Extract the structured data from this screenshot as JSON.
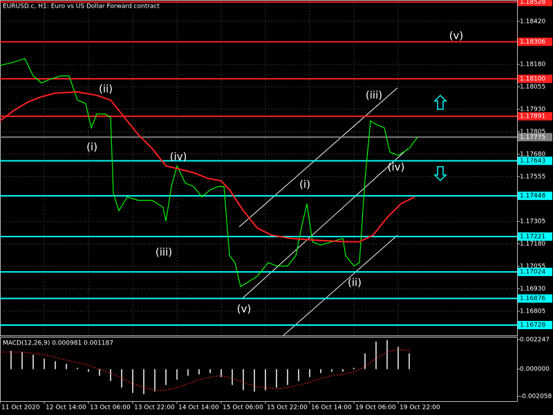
{
  "chart_data": {
    "type": "line",
    "title": "EURUSD.c, H1:  Euro vs US Dollar Forward contract",
    "grid": true,
    "xlim": [
      0,
      187
    ],
    "xticks": [
      {
        "value": 0,
        "label": "11 Oct 2020"
      },
      {
        "value": 16,
        "label": "12 Oct 14:00"
      },
      {
        "value": 32,
        "label": "13 Oct 06:00"
      },
      {
        "value": 48,
        "label": "13 Oct 22:00"
      },
      {
        "value": 64,
        "label": "14 Oct 14:00"
      },
      {
        "value": 80,
        "label": "15 Oct 06:00"
      },
      {
        "value": 96,
        "label": "15 Oct 22:00"
      },
      {
        "value": 112,
        "label": "16 Oct 14:00"
      },
      {
        "value": 128,
        "label": "19 Oct 06:00"
      },
      {
        "value": 144,
        "label": "19 Oct 22:00"
      }
    ],
    "ylim": [
      1.1667,
      1.18539
    ],
    "yticks": [
      {
        "value": 1.1842,
        "label": "1.18420"
      },
      {
        "value": 1.1818,
        "label": "1.18180"
      },
      1.18055,
      {
        "value": 1.1793,
        "label": "1.17930"
      },
      1.17805,
      {
        "value": 1.1768,
        "label": "1.17680"
      },
      1.17555,
      1.17305,
      {
        "value": 1.1718,
        "label": "1.17180"
      },
      1.17055,
      {
        "value": 1.1693,
        "label": "1.16930"
      },
      1.16805
    ],
    "series": [
      {
        "color": "#00ff00",
        "x": [
          0,
          5,
          9,
          12,
          15,
          18,
          22,
          25,
          28,
          31,
          33,
          35,
          38,
          40,
          41,
          43,
          46,
          50,
          55,
          59,
          60,
          62,
          64,
          67,
          70,
          73,
          76,
          79,
          81,
          83,
          85,
          87,
          89,
          93,
          97,
          100,
          104,
          107,
          109,
          111,
          113,
          116,
          120,
          124,
          125,
          128,
          130,
          132,
          134,
          136,
          139,
          141,
          144,
          148,
          151
        ],
        "values": [
          1.18174,
          1.18193,
          1.18212,
          1.18116,
          1.18077,
          1.18097,
          1.18116,
          1.18116,
          1.17981,
          1.17962,
          1.17827,
          1.17904,
          1.17904,
          1.17885,
          1.17461,
          1.17365,
          1.17442,
          1.17423,
          1.17423,
          1.17384,
          1.17307,
          1.175,
          1.17615,
          1.17519,
          1.175,
          1.17442,
          1.17481,
          1.175,
          1.175,
          1.17115,
          1.17076,
          1.16942,
          1.16961,
          1.16999,
          1.17076,
          1.17057,
          1.17057,
          1.17115,
          1.17269,
          1.17404,
          1.17192,
          1.17173,
          1.17192,
          1.17211,
          1.17115,
          1.17057,
          1.17076,
          1.17538,
          1.17866,
          1.17846,
          1.17827,
          1.17692,
          1.17673,
          1.17712,
          1.17775
        ]
      },
      {
        "color": "#ff2020",
        "x": [
          0,
          5,
          10,
          15,
          20,
          28,
          35,
          40,
          45,
          50,
          55,
          60,
          65,
          70,
          75,
          80,
          83,
          88,
          93,
          98,
          105,
          115,
          125,
          130,
          135,
          140,
          145,
          150
        ],
        "values": [
          1.17866,
          1.17923,
          1.1797,
          1.18,
          1.1802,
          1.18027,
          1.18008,
          1.17981,
          1.17885,
          1.17789,
          1.17712,
          1.17615,
          1.17596,
          1.17577,
          1.17546,
          1.17531,
          1.17481,
          1.17365,
          1.17269,
          1.1723,
          1.17211,
          1.172,
          1.17192,
          1.17192,
          1.1723,
          1.17327,
          1.17404,
          1.17442
        ]
      }
    ],
    "levels": [
      {
        "value": 1.18528,
        "color": "#ff2020"
      },
      {
        "value": 1.18306,
        "color": "#ff2020"
      },
      {
        "value": 1.181,
        "label": "1.18100",
        "color": "#ff2020"
      },
      {
        "value": 1.17891,
        "color": "#ff2020"
      },
      {
        "value": 1.17775,
        "color": "#808080"
      },
      {
        "value": 1.17643,
        "color": "#00ffff"
      },
      {
        "value": 1.17448,
        "color": "#00ffff"
      },
      {
        "value": 1.17221,
        "color": "#00ffff"
      },
      {
        "value": 1.17024,
        "color": "#00ffff"
      },
      {
        "value": 1.16876,
        "color": "#00ffff"
      },
      {
        "value": 1.16728,
        "color": "#00ffff"
      }
    ],
    "annotations": [
      "(v)",
      "(ii)",
      "(i)",
      "(iv)",
      "(iii)",
      "(v)",
      "(i)",
      "(ii)",
      "(iii)",
      "(iv)"
    ],
    "indicator": {
      "title": "MACD(12,26,9) 0.000981 0.001187",
      "ylim": [
        -0.00243,
        0.0024
      ],
      "yticks": [
        0.002247,
        {
          "value": 0,
          "label": "0.000000"
        },
        -0.002058
      ],
      "x": [
        0,
        4,
        8,
        12,
        16,
        20,
        24,
        28,
        32,
        36,
        40,
        44,
        48,
        52,
        56,
        60,
        64,
        68,
        72,
        76,
        80,
        84,
        88,
        92,
        96,
        100,
        104,
        108,
        112,
        116,
        120,
        124,
        128,
        132,
        136,
        140,
        144,
        148
      ],
      "histogram": {
        "color": "#c0c0c0",
        "values": [
          0.0012,
          0.0014,
          0.0013,
          0.0011,
          0.0008,
          0.0006,
          0.0004,
          0.0001,
          -0.0002,
          -0.0005,
          -0.0009,
          -0.0014,
          -0.0018,
          -0.0019,
          -0.0017,
          -0.0012,
          -0.0008,
          -0.0005,
          -0.0004,
          -0.0003,
          -0.0006,
          -0.0012,
          -0.0016,
          -0.0017,
          -0.0016,
          -0.0014,
          -0.0012,
          -0.0009,
          -0.0006,
          -0.0003,
          -0.0002,
          -0.0002,
          0.0001,
          0.0012,
          0.0021,
          0.0022,
          0.0017,
          0.0012
        ]
      },
      "signal": {
        "color": "#ff2020",
        "values": [
          0.0013,
          0.0013,
          0.0013,
          0.0012,
          0.0011,
          0.0009,
          0.0007,
          0.0005,
          0.0003,
          0,
          -0.0003,
          -0.0007,
          -0.0011,
          -0.0014,
          -0.0016,
          -0.0016,
          -0.0014,
          -0.0011,
          -0.0008,
          -0.0006,
          -0.0005,
          -0.0007,
          -0.001,
          -0.0013,
          -0.0014,
          -0.0015,
          -0.0014,
          -0.0012,
          -0.001,
          -0.0007,
          -0.0005,
          -0.0004,
          -0.0002,
          0.0002,
          0.0008,
          0.0013,
          0.0015,
          0.0014
        ]
      }
    }
  }
}
